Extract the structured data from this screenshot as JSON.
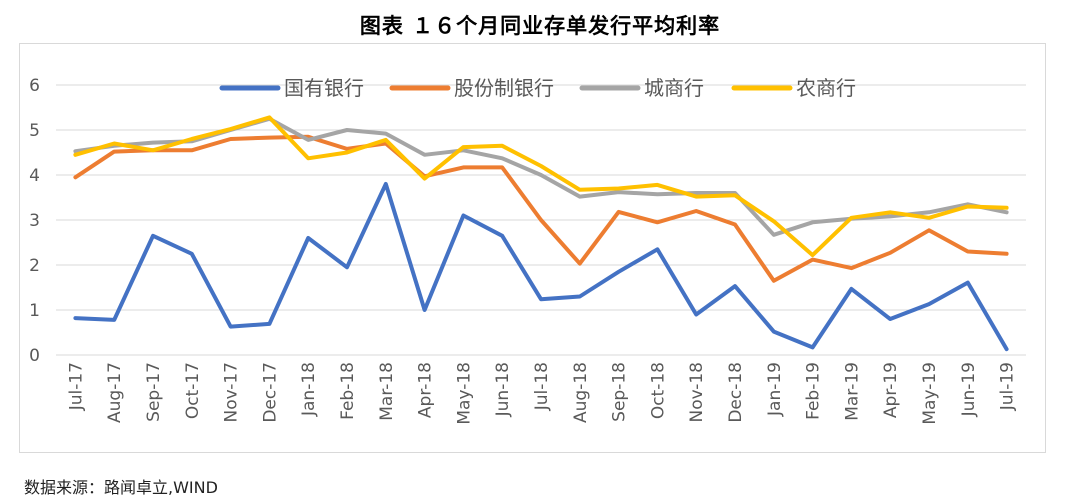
{
  "title": "图表 １６个月同业存单发行平均利率",
  "source": "数据来源：路闻卓立,WIND",
  "colors": {
    "guoyou": "#4472C4",
    "gufenzhi": "#ED7D31",
    "chengshang": "#A5A5A5",
    "nongshang": "#FFC000",
    "grid": "#d9d9d9",
    "axis_text": "#595959"
  },
  "chart_data": {
    "type": "line",
    "title": "图表 １６个月同业存单发行平均利率",
    "xlabel": "",
    "ylabel": "",
    "ylim": [
      0,
      6
    ],
    "yticks": [
      0,
      1,
      2,
      3,
      4,
      5,
      6
    ],
    "grid": true,
    "legend_position": "top",
    "categories": [
      "Jul-17",
      "Aug-17",
      "Sep-17",
      "Oct-17",
      "Nov-17",
      "Dec-17",
      "Jan-18",
      "Feb-18",
      "Mar-18",
      "Apr-18",
      "May-18",
      "Jun-18",
      "Jul-18",
      "Aug-18",
      "Sep-18",
      "Oct-18",
      "Nov-18",
      "Dec-18",
      "Jan-19",
      "Feb-19",
      "Mar-19",
      "Apr-19",
      "May-19",
      "Jun-19",
      "Jul-19"
    ],
    "series": [
      {
        "name": "国有银行",
        "color": "#4472C4",
        "values": [
          0.82,
          0.78,
          2.65,
          2.25,
          0.63,
          0.69,
          2.6,
          1.95,
          3.8,
          1.0,
          3.1,
          2.65,
          1.24,
          1.3,
          1.85,
          2.35,
          0.9,
          1.53,
          0.52,
          0.17,
          1.47,
          0.8,
          1.13,
          1.61,
          0.13
        ]
      },
      {
        "name": "股份制银行",
        "color": "#ED7D31",
        "values": [
          3.95,
          4.52,
          4.55,
          4.55,
          4.8,
          4.83,
          4.85,
          4.58,
          4.7,
          3.97,
          4.17,
          4.17,
          3.0,
          2.03,
          3.18,
          2.95,
          3.2,
          2.9,
          1.65,
          2.12,
          1.93,
          2.27,
          2.77,
          2.3,
          2.25
        ]
      },
      {
        "name": "城商行",
        "color": "#A5A5A5",
        "values": [
          4.53,
          4.65,
          4.72,
          4.75,
          5.0,
          5.25,
          4.78,
          5.0,
          4.92,
          4.45,
          4.55,
          4.37,
          4.0,
          3.52,
          3.62,
          3.57,
          3.6,
          3.6,
          2.67,
          2.95,
          3.03,
          3.08,
          3.17,
          3.35,
          3.17
        ]
      },
      {
        "name": "农商行",
        "color": "#FFC000",
        "values": [
          4.45,
          4.7,
          4.55,
          4.8,
          5.02,
          5.28,
          4.37,
          4.5,
          4.78,
          3.92,
          4.62,
          4.65,
          4.2,
          3.67,
          3.7,
          3.78,
          3.52,
          3.55,
          2.97,
          2.22,
          3.05,
          3.17,
          3.05,
          3.3,
          3.27
        ]
      }
    ]
  }
}
